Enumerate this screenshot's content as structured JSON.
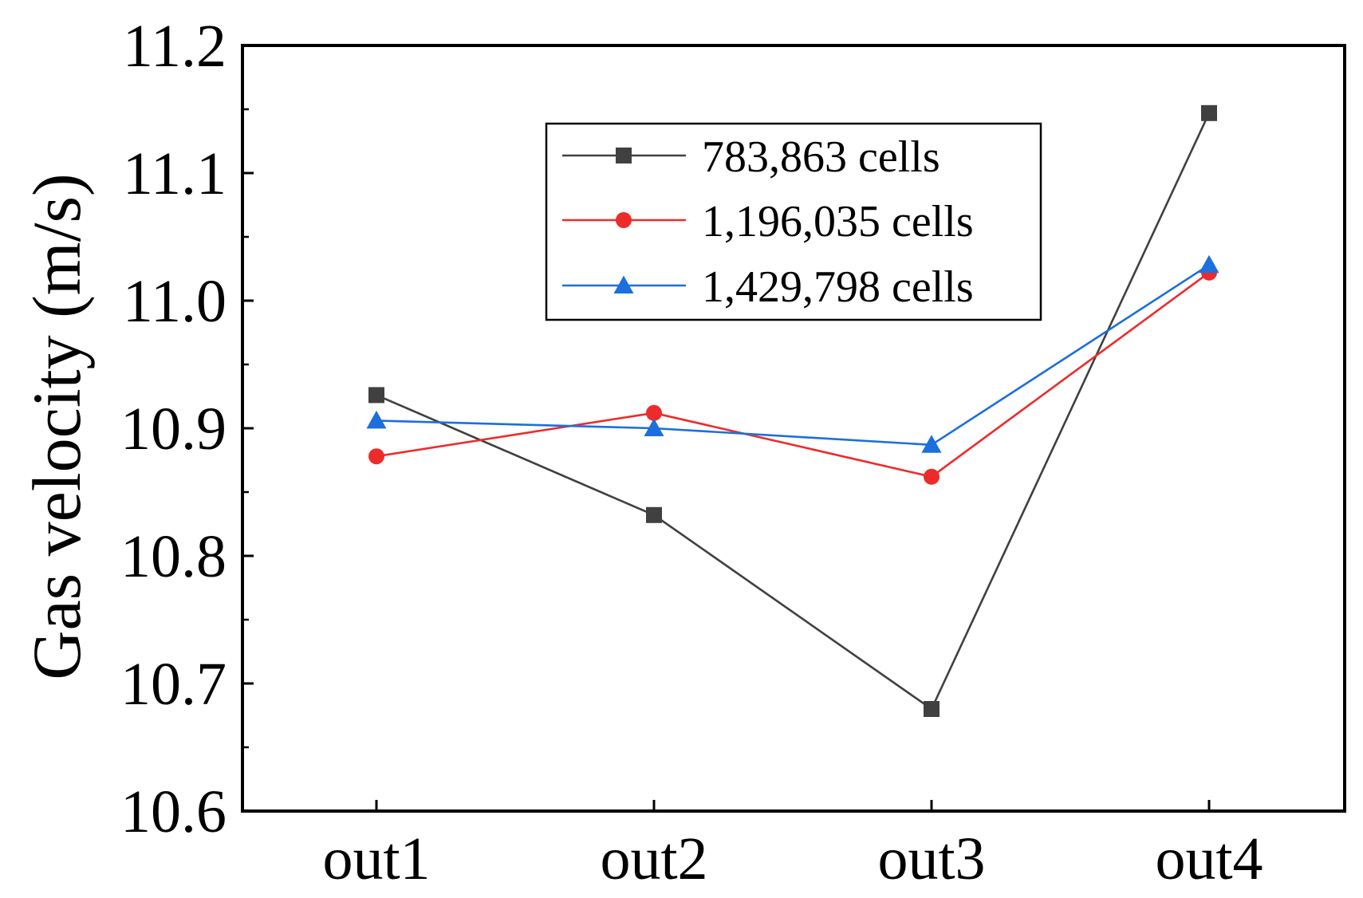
{
  "chart_data": {
    "type": "line",
    "title": "",
    "xlabel": "",
    "ylabel": "Gas velocity (m/s)",
    "categories": [
      "out1",
      "out2",
      "out3",
      "out4"
    ],
    "ylim": [
      10.6,
      11.2
    ],
    "yticks": [
      "10.6",
      "10.7",
      "10.8",
      "10.9",
      "11.0",
      "11.1",
      "11.2"
    ],
    "grid": false,
    "legend_position": "top-right",
    "series": [
      {
        "name": "783,863 cells",
        "color": "#404040",
        "marker": "square",
        "values": [
          10.926,
          10.832,
          10.68,
          11.147
        ]
      },
      {
        "name": "1,196,035 cells",
        "color": "#ee2b2b",
        "marker": "circle",
        "values": [
          10.878,
          10.912,
          10.862,
          11.022
        ]
      },
      {
        "name": "1,429,798 cells",
        "color": "#1c6fdc",
        "marker": "triangle",
        "values": [
          10.906,
          10.9,
          10.887,
          11.028
        ]
      }
    ]
  }
}
